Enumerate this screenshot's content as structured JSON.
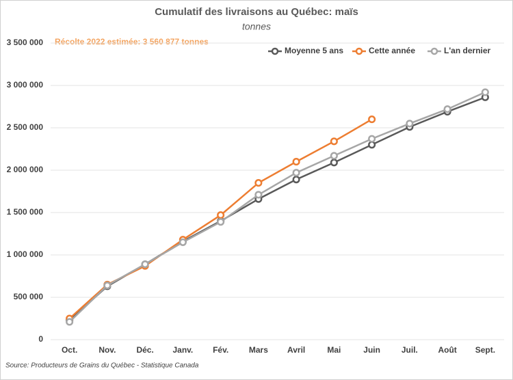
{
  "chart_data": {
    "type": "line",
    "title": "Cumulatif des livraisons au Québec: maïs",
    "subtitle": "tonnes",
    "annotation": "Récolte 2022 estimée: 3 560 877 tonnes",
    "source": "Source: Producteurs de Grains du Québec - Statistique Canada",
    "categories": [
      "Oct.",
      "Nov.",
      "Déc.",
      "Janv.",
      "Fév.",
      "Mars",
      "Avril",
      "Mai",
      "Juin",
      "Juil.",
      "Août",
      "Sept."
    ],
    "series": [
      {
        "name": "Moyenne 5 ans",
        "color": "#595959",
        "values": [
          230000,
          630000,
          890000,
          1160000,
          1400000,
          1660000,
          1890000,
          2090000,
          2300000,
          2510000,
          2690000,
          2860000
        ]
      },
      {
        "name": "Cette année",
        "color": "#ed7d31",
        "values": [
          250000,
          650000,
          870000,
          1180000,
          1470000,
          1850000,
          2100000,
          2340000,
          2600000,
          null,
          null,
          null
        ]
      },
      {
        "name": "L'an dernier",
        "color": "#a6a6a6",
        "values": [
          210000,
          640000,
          890000,
          1150000,
          1390000,
          1710000,
          1970000,
          2170000,
          2370000,
          2550000,
          2720000,
          2920000
        ]
      }
    ],
    "ylim": [
      0,
      3500000
    ],
    "yticks": [
      0,
      {
        "value": 500000,
        "label": "500 000"
      },
      {
        "value": 1000000,
        "label": "1 000 000"
      },
      {
        "value": 1500000,
        "label": "1 500 000"
      },
      {
        "value": 2000000,
        "label": "2 000 000"
      },
      {
        "value": 2500000,
        "label": "2 500 000"
      },
      {
        "value": 3000000,
        "label": "3 000 000"
      },
      {
        "value": 3500000,
        "label": "3 500 000"
      }
    ],
    "grid": true,
    "legend": "top-right"
  }
}
